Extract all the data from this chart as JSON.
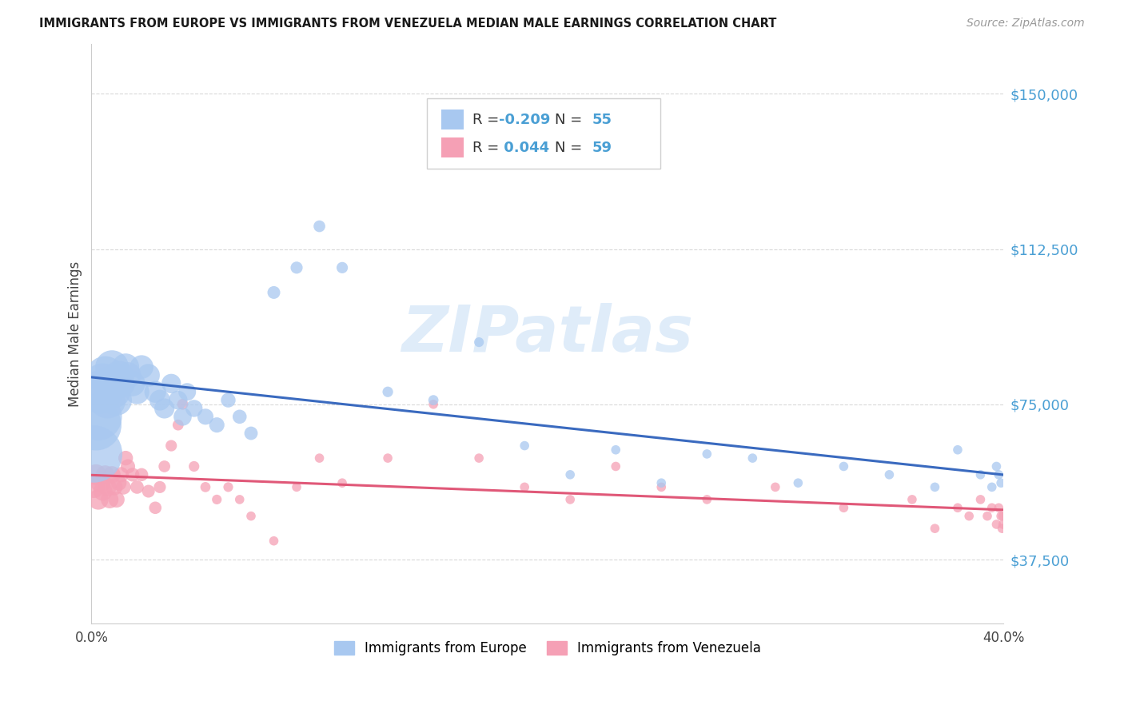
{
  "title": "IMMIGRANTS FROM EUROPE VS IMMIGRANTS FROM VENEZUELA MEDIAN MALE EARNINGS CORRELATION CHART",
  "source": "Source: ZipAtlas.com",
  "ylabel": "Median Male Earnings",
  "xlim": [
    0.0,
    0.4
  ],
  "ylim": [
    22000,
    162000
  ],
  "yticks": [
    37500,
    75000,
    112500,
    150000
  ],
  "ytick_labels": [
    "$37,500",
    "$75,000",
    "$112,500",
    "$150,000"
  ],
  "xticks": [
    0.0,
    0.05,
    0.1,
    0.15,
    0.2,
    0.25,
    0.3,
    0.35,
    0.4
  ],
  "xtick_labels": [
    "0.0%",
    "",
    "",
    "",
    "",
    "",
    "",
    "",
    "40.0%"
  ],
  "europe_R": -0.209,
  "europe_N": 55,
  "venezuela_R": 0.044,
  "venezuela_N": 59,
  "europe_color": "#a8c8f0",
  "venezuela_color": "#f5a0b5",
  "europe_line_color": "#3a6abf",
  "venezuela_line_color": "#e05878",
  "background_color": "#ffffff",
  "grid_color": "#d0d0d0",
  "watermark": "ZIPatlas",
  "europe_x": [
    0.001,
    0.002,
    0.003,
    0.004,
    0.005,
    0.006,
    0.007,
    0.008,
    0.009,
    0.01,
    0.011,
    0.012,
    0.013,
    0.015,
    0.016,
    0.018,
    0.02,
    0.022,
    0.025,
    0.028,
    0.03,
    0.032,
    0.035,
    0.038,
    0.04,
    0.042,
    0.045,
    0.05,
    0.055,
    0.06,
    0.065,
    0.07,
    0.08,
    0.09,
    0.1,
    0.11,
    0.13,
    0.15,
    0.17,
    0.19,
    0.21,
    0.23,
    0.25,
    0.27,
    0.29,
    0.31,
    0.33,
    0.35,
    0.37,
    0.38,
    0.39,
    0.395,
    0.397,
    0.398,
    0.399
  ],
  "europe_y": [
    63000,
    70000,
    72000,
    78000,
    80000,
    82000,
    76000,
    80000,
    84000,
    78000,
    76000,
    82000,
    80000,
    84000,
    82000,
    80000,
    78000,
    84000,
    82000,
    78000,
    76000,
    74000,
    80000,
    76000,
    72000,
    78000,
    74000,
    72000,
    70000,
    76000,
    72000,
    68000,
    102000,
    108000,
    118000,
    108000,
    78000,
    76000,
    90000,
    65000,
    58000,
    64000,
    56000,
    63000,
    62000,
    56000,
    60000,
    58000,
    55000,
    64000,
    58000,
    55000,
    60000,
    58000,
    56000
  ],
  "europe_sizes": [
    380,
    300,
    260,
    220,
    190,
    170,
    155,
    140,
    130,
    120,
    110,
    100,
    90,
    85,
    80,
    75,
    70,
    65,
    60,
    55,
    50,
    47,
    44,
    41,
    38,
    36,
    34,
    30,
    27,
    25,
    23,
    21,
    19,
    17,
    16,
    15,
    13,
    12,
    11,
    10,
    10,
    10,
    10,
    10,
    10,
    10,
    10,
    10,
    10,
    10,
    10,
    10,
    10,
    10,
    10
  ],
  "venezuela_x": [
    0.001,
    0.002,
    0.003,
    0.004,
    0.005,
    0.006,
    0.007,
    0.008,
    0.009,
    0.01,
    0.011,
    0.012,
    0.013,
    0.014,
    0.015,
    0.016,
    0.018,
    0.02,
    0.022,
    0.025,
    0.028,
    0.03,
    0.032,
    0.035,
    0.038,
    0.04,
    0.045,
    0.05,
    0.055,
    0.06,
    0.065,
    0.07,
    0.08,
    0.09,
    0.1,
    0.11,
    0.13,
    0.15,
    0.17,
    0.19,
    0.21,
    0.23,
    0.25,
    0.27,
    0.3,
    0.33,
    0.36,
    0.37,
    0.38,
    0.385,
    0.39,
    0.393,
    0.395,
    0.397,
    0.398,
    0.399,
    0.3995,
    0.3998,
    0.3999
  ],
  "venezuela_y": [
    55000,
    58000,
    52000,
    56000,
    54000,
    58000,
    55000,
    52000,
    58000,
    55000,
    52000,
    56000,
    58000,
    55000,
    62000,
    60000,
    58000,
    55000,
    58000,
    54000,
    50000,
    55000,
    60000,
    65000,
    70000,
    75000,
    60000,
    55000,
    52000,
    55000,
    52000,
    48000,
    42000,
    55000,
    62000,
    56000,
    62000,
    75000,
    62000,
    55000,
    52000,
    60000,
    55000,
    52000,
    55000,
    50000,
    52000,
    45000,
    50000,
    48000,
    52000,
    48000,
    50000,
    46000,
    50000,
    48000,
    45000,
    48000,
    46000
  ],
  "venezuela_sizes": [
    55,
    50,
    48,
    45,
    42,
    40,
    38,
    36,
    34,
    32,
    30,
    28,
    27,
    26,
    25,
    24,
    22,
    21,
    20,
    19,
    18,
    17,
    16,
    15,
    14,
    14,
    13,
    12,
    11,
    11,
    10,
    10,
    10,
    10,
    10,
    10,
    10,
    10,
    10,
    10,
    10,
    10,
    10,
    10,
    10,
    10,
    10,
    10,
    10,
    10,
    10,
    10,
    10,
    10,
    10,
    10,
    10,
    10,
    10
  ]
}
